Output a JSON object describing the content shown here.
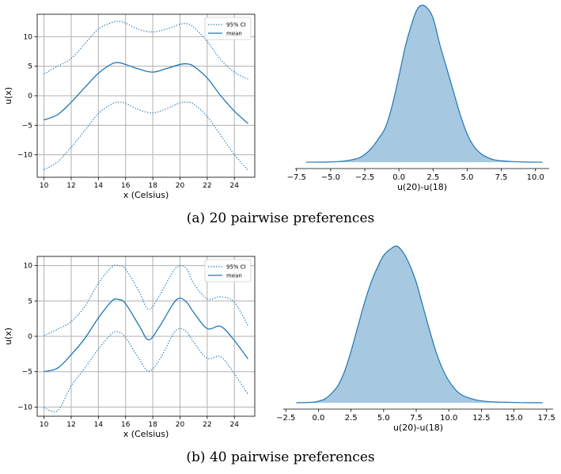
{
  "colors": {
    "line": "#1f77b4",
    "fill": "#a6c8e0",
    "grid": "#b0b0b0"
  },
  "captions": {
    "a": "(a) 20 pairwise preferences",
    "b": "(b) 40 pairwise preferences"
  },
  "chart_data": [
    {
      "id": "a-left",
      "type": "line",
      "xlabel": "x (Celsius)",
      "ylabel": "u(x)",
      "xlim": [
        9.5,
        25.5
      ],
      "ylim": [
        -13.8,
        13.8
      ],
      "xticks": [
        10,
        12,
        14,
        16,
        18,
        20,
        22,
        24
      ],
      "yticks": [
        -10,
        -5,
        0,
        5,
        10
      ],
      "grid": true,
      "legend": {
        "position": "top-right",
        "entries": [
          "95% CI",
          "mean"
        ]
      },
      "x": [
        10,
        11,
        12,
        13,
        14,
        15,
        15.5,
        16,
        17,
        18,
        19,
        20,
        20.5,
        21,
        22,
        23,
        24,
        25
      ],
      "series": [
        {
          "name": "95% CI",
          "style": "dotted",
          "values": [
            3.7,
            5.0,
            6.3,
            8.8,
            11.3,
            12.4,
            12.6,
            12.3,
            11.2,
            10.8,
            11.3,
            12.1,
            12.2,
            11.6,
            9.2,
            6.1,
            4.0,
            2.8
          ]
        },
        {
          "name": "mean",
          "style": "solid",
          "values": [
            -4.1,
            -3.2,
            -1.1,
            1.4,
            3.8,
            5.4,
            5.6,
            5.3,
            4.5,
            4.0,
            4.6,
            5.3,
            5.4,
            5.0,
            3.0,
            0.0,
            -2.6,
            -4.7
          ]
        },
        {
          "name": "95% CI",
          "style": "dotted",
          "values": [
            -12.5,
            -11.2,
            -8.7,
            -5.9,
            -3.0,
            -1.4,
            -1.1,
            -1.3,
            -2.4,
            -2.9,
            -2.2,
            -1.2,
            -1.1,
            -1.4,
            -3.5,
            -6.7,
            -10.0,
            -12.6
          ]
        }
      ]
    },
    {
      "id": "a-right",
      "type": "area",
      "xlabel": "u(20)-u(18)",
      "ylabel": "",
      "xlim": [
        -7.6,
        11.0
      ],
      "xticks": [
        -7.5,
        -5.0,
        -2.5,
        0.0,
        2.5,
        5.0,
        7.5,
        10.0
      ],
      "xtick_labels": [
        "−7.5",
        "−5.0",
        "−2.5",
        "0.0",
        "2.5",
        "5.0",
        "7.5",
        "10.0"
      ],
      "grid": false,
      "x": [
        -6.8,
        -5.0,
        -4.0,
        -3.0,
        -2.5,
        -2.0,
        -1.5,
        -1.0,
        -0.5,
        0.0,
        0.5,
        1.0,
        1.3,
        1.6,
        2.0,
        2.5,
        3.0,
        3.5,
        4.0,
        4.5,
        5.0,
        5.5,
        6.0,
        6.5,
        7.0,
        8.0,
        9.0,
        10.5
      ],
      "density": [
        0.0,
        0.002,
        0.008,
        0.025,
        0.05,
        0.09,
        0.15,
        0.22,
        0.36,
        0.55,
        0.75,
        0.9,
        0.97,
        1.0,
        0.99,
        0.92,
        0.75,
        0.6,
        0.45,
        0.3,
        0.18,
        0.1,
        0.055,
        0.03,
        0.015,
        0.006,
        0.002,
        0.0
      ]
    },
    {
      "id": "b-left",
      "type": "line",
      "xlabel": "x (Celsius)",
      "ylabel": "u(x)",
      "xlim": [
        9.5,
        25.5
      ],
      "ylim": [
        -11.3,
        11.3
      ],
      "xticks": [
        10,
        12,
        14,
        16,
        18,
        20,
        22,
        24
      ],
      "yticks": [
        -10,
        -5,
        0,
        5,
        10
      ],
      "grid": true,
      "legend": {
        "position": "top-right",
        "entries": [
          "95% CI",
          "mean"
        ]
      },
      "x": [
        10,
        11,
        12,
        13,
        14,
        15,
        15.5,
        16,
        17,
        17.7,
        18.5,
        19.5,
        20,
        20.5,
        21,
        22,
        23,
        24,
        25
      ],
      "series": [
        {
          "name": "95% CI",
          "style": "dotted",
          "values": [
            0.1,
            1.0,
            2.1,
            4.2,
            7.5,
            9.8,
            10.0,
            9.5,
            6.3,
            3.8,
            5.8,
            9.2,
            10.0,
            9.5,
            7.5,
            5.3,
            5.6,
            4.8,
            1.5
          ]
        },
        {
          "name": "mean",
          "style": "solid",
          "values": [
            -5.0,
            -4.5,
            -2.6,
            -0.3,
            2.6,
            5.0,
            5.2,
            4.6,
            1.5,
            -0.5,
            1.4,
            4.6,
            5.4,
            4.8,
            3.4,
            1.1,
            1.4,
            -0.6,
            -3.2
          ]
        },
        {
          "name": "95% CI",
          "style": "dotted",
          "values": [
            -10.1,
            -10.5,
            -7.0,
            -4.5,
            -1.8,
            0.4,
            0.6,
            -0.2,
            -3.2,
            -4.9,
            -3.3,
            0.3,
            1.1,
            0.6,
            -0.8,
            -3.1,
            -2.9,
            -5.3,
            -8.2
          ]
        }
      ]
    },
    {
      "id": "b-right",
      "type": "area",
      "xlabel": "u(20)-u(18)",
      "ylabel": "",
      "xlim": [
        -2.7,
        18.0
      ],
      "xticks": [
        -2.5,
        0.0,
        2.5,
        5.0,
        7.5,
        10.0,
        12.5,
        15.0,
        17.5
      ],
      "xtick_labels": [
        "−2.5",
        "0.0",
        "2.5",
        "5.0",
        "7.5",
        "10.0",
        "12.5",
        "15.0",
        "17.5"
      ],
      "grid": false,
      "x": [
        -1.7,
        -0.5,
        0.0,
        0.5,
        1.0,
        1.5,
        2.0,
        2.5,
        3.0,
        3.5,
        4.0,
        4.5,
        5.0,
        5.5,
        6.0,
        6.5,
        7.0,
        7.5,
        8.0,
        8.5,
        9.0,
        9.5,
        10.0,
        10.5,
        11.0,
        12.0,
        13.0,
        14.0,
        15.5,
        17.2
      ],
      "density": [
        0.0,
        0.003,
        0.01,
        0.025,
        0.06,
        0.11,
        0.2,
        0.33,
        0.48,
        0.63,
        0.76,
        0.86,
        0.94,
        0.98,
        1.0,
        0.96,
        0.88,
        0.77,
        0.62,
        0.47,
        0.33,
        0.22,
        0.14,
        0.085,
        0.05,
        0.02,
        0.008,
        0.004,
        0.001,
        0.0
      ]
    }
  ]
}
